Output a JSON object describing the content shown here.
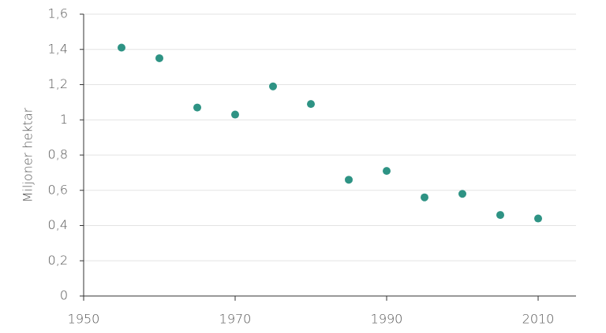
{
  "chart_data": {
    "type": "scatter",
    "y_label": "Miljoner hektar",
    "x": [
      1955,
      1960,
      1965,
      1970,
      1975,
      1980,
      1985,
      1990,
      1995,
      2000,
      2005,
      2010
    ],
    "values": [
      1.41,
      1.35,
      1.07,
      1.03,
      1.19,
      1.09,
      0.66,
      0.71,
      0.56,
      0.58,
      0.46,
      0.44
    ],
    "color": "#2e9384",
    "xlim": [
      1950,
      2015
    ],
    "xticks": [
      1950,
      1970,
      1990,
      2010
    ],
    "ylim": [
      0,
      1.6
    ],
    "yticks": [
      0,
      {
        "value": 0.2,
        "label": "0,2"
      },
      {
        "value": 0.4,
        "label": "0,4"
      },
      {
        "value": 0.6,
        "label": "0,6"
      },
      {
        "value": 0.8,
        "label": "0,8"
      },
      1,
      {
        "value": 1.2,
        "label": "1,2"
      },
      {
        "value": 1.4,
        "label": "1,4"
      },
      {
        "value": 1.6,
        "label": "1,6"
      }
    ],
    "grid": true
  }
}
